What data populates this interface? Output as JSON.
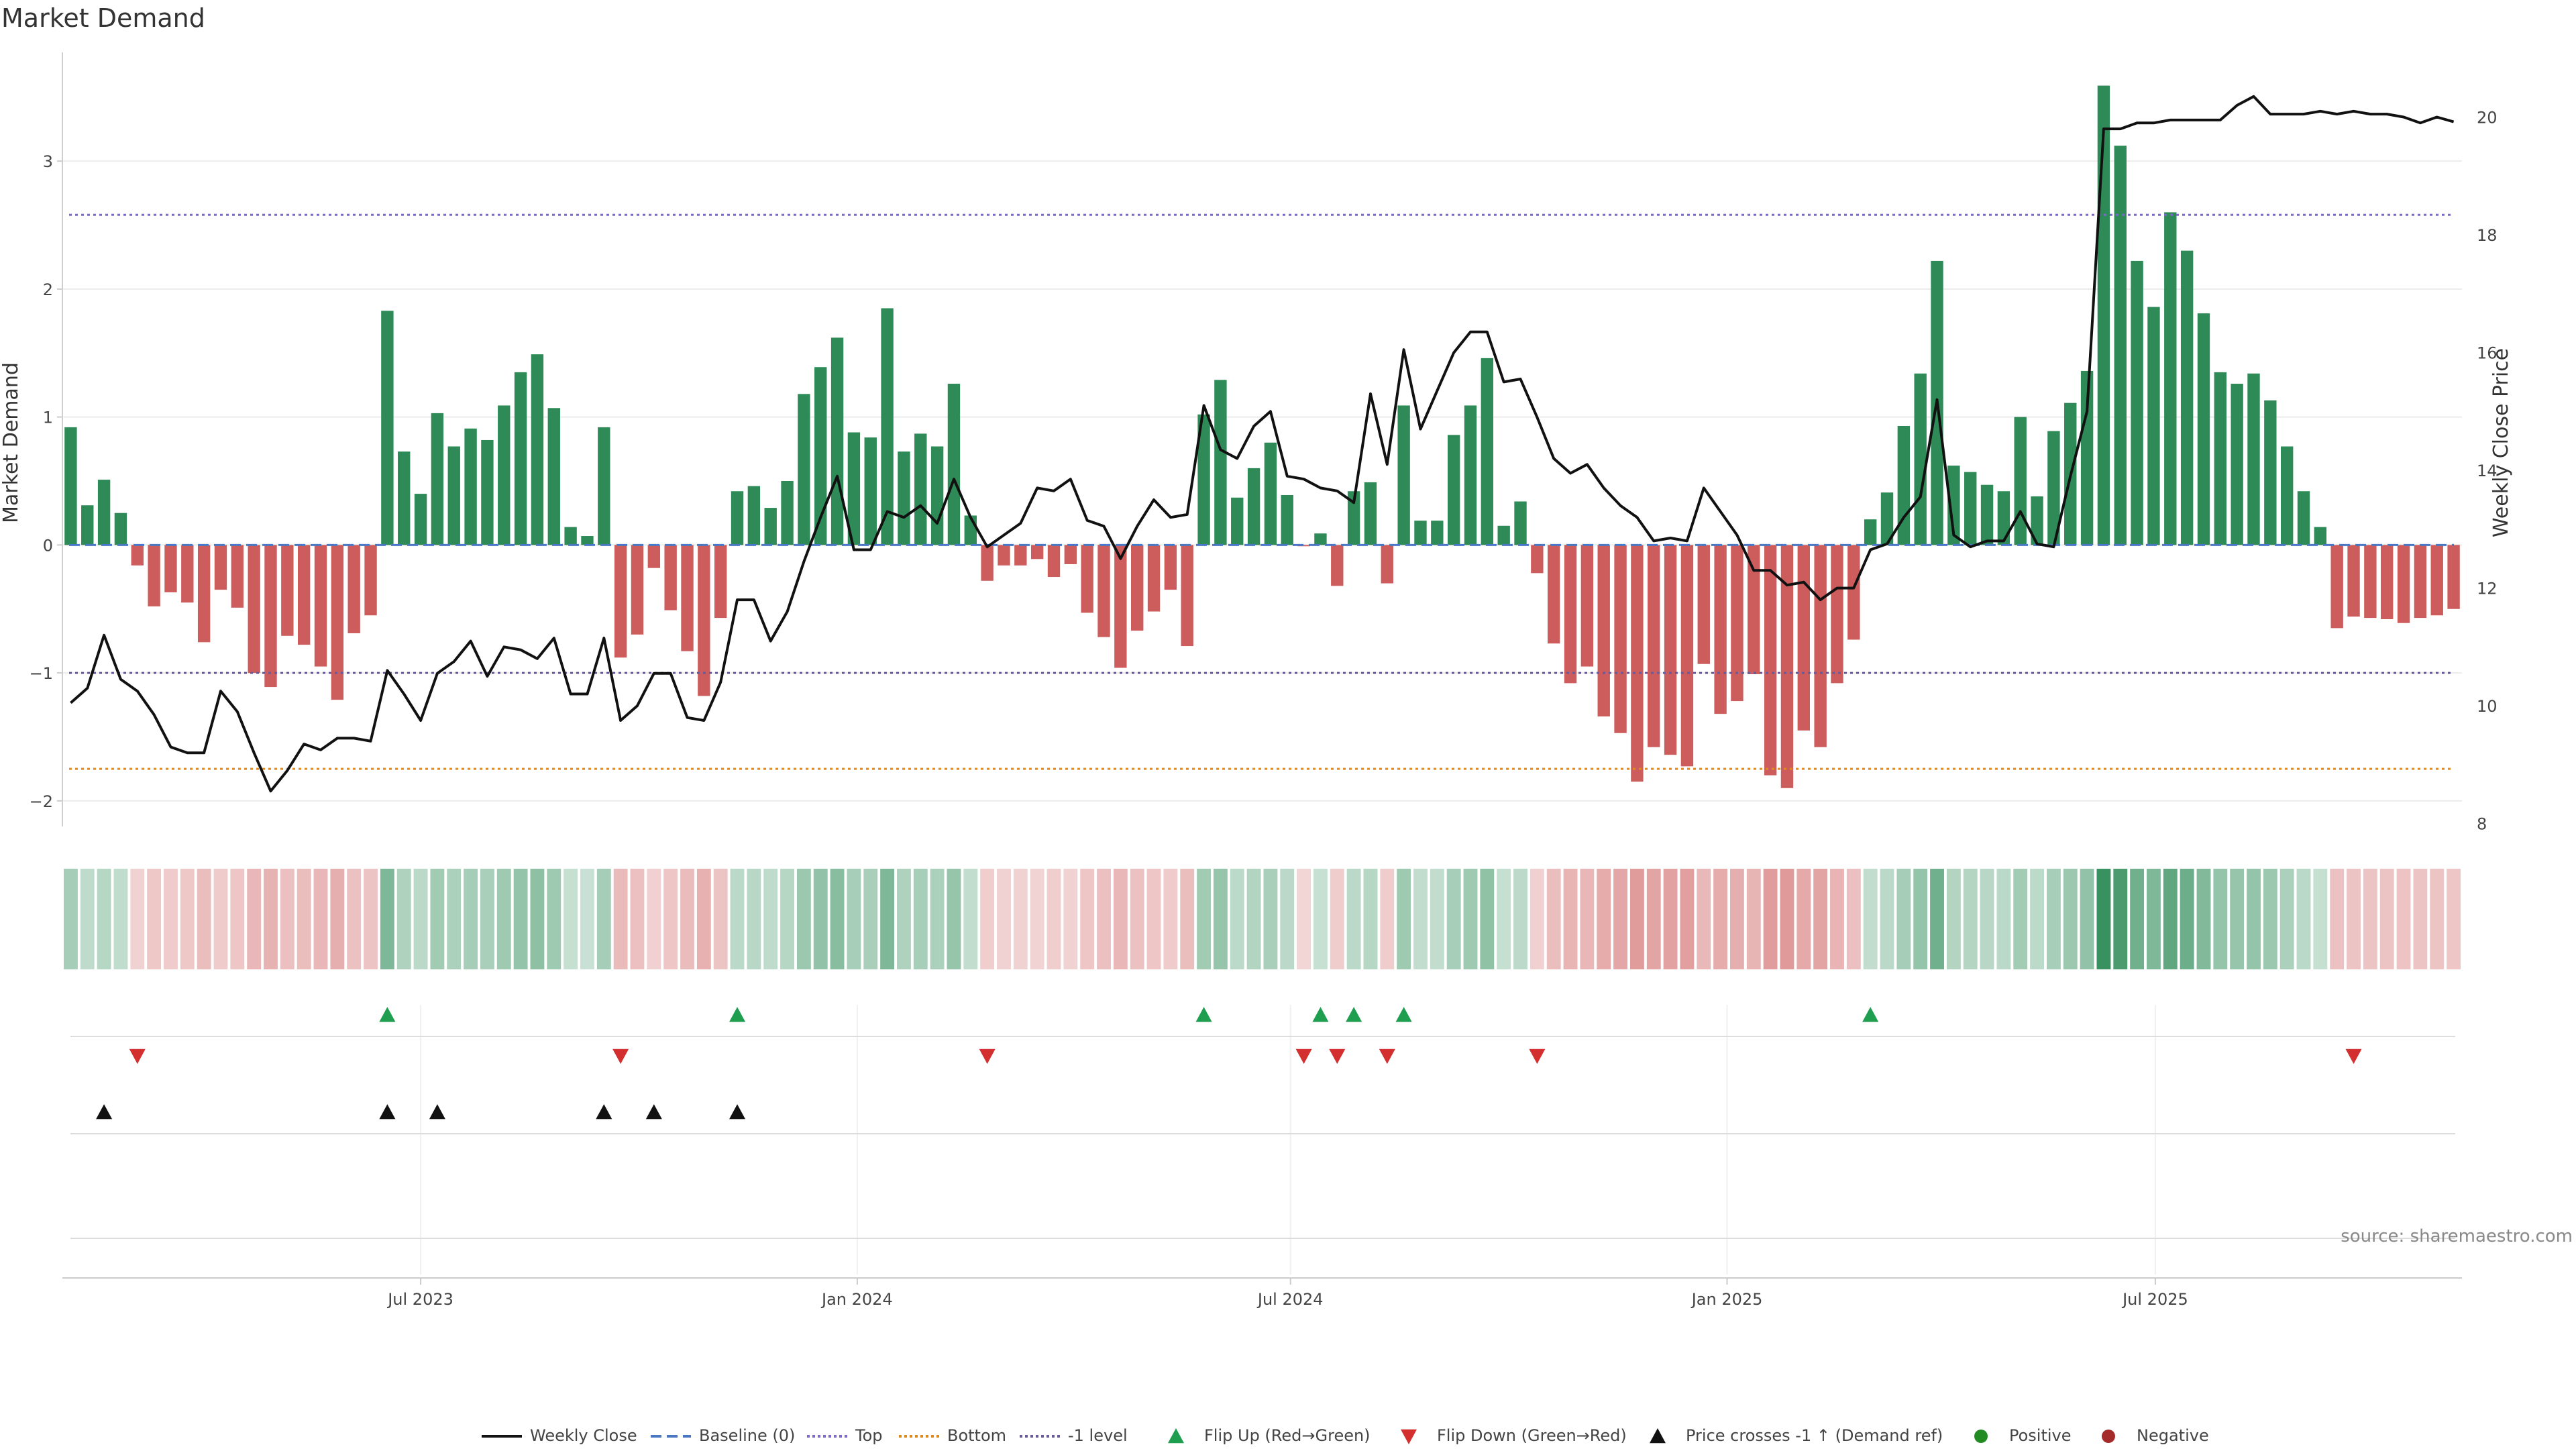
{
  "chart_data": {
    "type": "bar",
    "title": "Market Demand",
    "ylabel": "Market Demand",
    "y2label": "Weekly Close Price",
    "source": "source: sharemaestro.com",
    "ylim": [
      -2.2,
      3.85
    ],
    "y2lim": [
      7.95,
      21.1
    ],
    "yticks": [
      "−2",
      "−1",
      "0",
      "1",
      "2",
      "3"
    ],
    "yticks_values": [
      -2,
      -1,
      0,
      1,
      2,
      3
    ],
    "y2ticks": [
      "8",
      "10",
      "12",
      "14",
      "16",
      "18",
      "20"
    ],
    "y2ticks_values": [
      8,
      10,
      12,
      14,
      16,
      18,
      20
    ],
    "xticks": [
      "Jul 2023",
      "Jan 2024",
      "Jul 2024",
      "Jan 2025",
      "Jul 2025"
    ],
    "xticks_index": [
      21.5,
      47.7,
      73.7,
      99.9,
      125.6
    ],
    "reference_lines": {
      "top": 2.58,
      "bottom": -1.75,
      "minus_one": -1
    },
    "colors": {
      "positive": "#2e8b57",
      "negative": "#cd5c5c",
      "price": "#111111",
      "baseline": "#4a78c2",
      "top": "#7b68c8",
      "bottom": "#e08a1e",
      "minus_one": "#6a5a9a",
      "flip_up": "#1f9e4f",
      "flip_down": "#d32f2f",
      "cross": "#111111",
      "legend_positive": "#228b22",
      "legend_negative": "#a52a2a"
    },
    "demand": [
      0.92,
      0.31,
      0.51,
      0.25,
      -0.16,
      -0.48,
      -0.37,
      -0.45,
      -0.76,
      -0.35,
      -0.49,
      -1.0,
      -1.11,
      -0.71,
      -0.78,
      -0.95,
      -1.21,
      -0.69,
      -0.55,
      1.83,
      0.73,
      0.4,
      1.03,
      0.77,
      0.91,
      0.82,
      1.09,
      1.35,
      1.49,
      1.07,
      0.14,
      0.07,
      0.92,
      -0.88,
      -0.7,
      -0.18,
      -0.51,
      -0.83,
      -1.18,
      -0.57,
      0.42,
      0.46,
      0.29,
      0.5,
      1.18,
      1.39,
      1.62,
      0.88,
      0.84,
      1.85,
      0.73,
      0.87,
      0.77,
      1.26,
      0.23,
      -0.28,
      -0.16,
      -0.16,
      -0.11,
      -0.25,
      -0.15,
      -0.53,
      -0.72,
      -0.96,
      -0.67,
      -0.52,
      -0.35,
      -0.79,
      1.02,
      1.29,
      0.37,
      0.6,
      0.8,
      0.39,
      -0.01,
      0.09,
      -0.32,
      0.42,
      0.49,
      -0.3,
      1.09,
      0.19,
      0.19,
      0.86,
      1.09,
      1.46,
      0.15,
      0.34,
      -0.22,
      -0.77,
      -1.08,
      -0.95,
      -1.34,
      -1.47,
      -1.85,
      -1.58,
      -1.64,
      -1.73,
      -0.93,
      -1.32,
      -1.22,
      -1.01,
      -1.8,
      -1.9,
      -1.45,
      -1.58,
      -1.08,
      -0.74,
      0.2,
      0.41,
      0.93,
      1.34,
      2.22,
      0.62,
      0.57,
      0.47,
      0.42,
      1.0,
      0.38,
      0.89,
      1.11,
      1.36,
      3.59,
      3.12,
      2.22,
      1.86,
      2.6,
      2.3,
      1.81,
      1.35,
      1.26,
      1.34,
      1.13,
      0.77,
      0.42,
      0.14,
      -0.65,
      -0.56,
      -0.57,
      -0.58,
      -0.61,
      -0.57,
      -0.55,
      -0.5
    ],
    "close": [
      10.05,
      10.3,
      11.2,
      10.45,
      10.25,
      9.85,
      9.3,
      9.2,
      9.2,
      10.25,
      9.9,
      9.2,
      8.55,
      8.9,
      9.35,
      9.25,
      9.45,
      9.45,
      9.4,
      10.6,
      10.2,
      9.75,
      10.55,
      10.75,
      11.1,
      10.5,
      11.0,
      10.95,
      10.8,
      11.15,
      10.2,
      10.2,
      11.15,
      9.75,
      10.0,
      10.55,
      10.55,
      9.8,
      9.75,
      10.4,
      11.8,
      11.8,
      11.1,
      11.6,
      12.45,
      13.2,
      13.9,
      12.65,
      12.65,
      13.3,
      13.2,
      13.4,
      13.1,
      13.85,
      13.2,
      12.7,
      12.9,
      13.1,
      13.7,
      13.65,
      13.85,
      13.15,
      13.05,
      12.5,
      13.05,
      13.5,
      13.2,
      13.25,
      15.1,
      14.35,
      14.2,
      14.75,
      15.0,
      13.9,
      13.85,
      13.7,
      13.65,
      13.45,
      15.3,
      14.1,
      16.05,
      14.7,
      15.35,
      16.0,
      16.35,
      16.35,
      15.5,
      15.55,
      14.9,
      14.2,
      13.95,
      14.1,
      13.7,
      13.4,
      13.2,
      12.8,
      12.85,
      12.8,
      13.7,
      13.3,
      12.9,
      12.3,
      12.3,
      12.05,
      12.1,
      11.8,
      12.0,
      12.0,
      12.65,
      12.75,
      13.2,
      13.55,
      15.2,
      12.9,
      12.7,
      12.8,
      12.8,
      13.3,
      12.75,
      12.7,
      13.9,
      15.0,
      19.8,
      19.8,
      19.9,
      19.9,
      19.95,
      19.95,
      19.95,
      19.95,
      20.2,
      20.35,
      20.05,
      20.05,
      20.05,
      20.1,
      20.05,
      20.1,
      20.05,
      20.05,
      20.0,
      19.9,
      20.0,
      19.92
    ],
    "flip_up_index": [
      19,
      40,
      68,
      75,
      77,
      80,
      108
    ],
    "flip_down_index": [
      4,
      33,
      55,
      74,
      76,
      79,
      88,
      137
    ],
    "cross_index": [
      2,
      19,
      22,
      32,
      35,
      40
    ],
    "legend": [
      {
        "label": "Weekly Close",
        "kind": "line",
        "color": "#111111",
        "dash": ""
      },
      {
        "label": "Baseline (0)",
        "kind": "line",
        "color": "#4a78c2",
        "dash": "16 8"
      },
      {
        "label": "Top",
        "kind": "line",
        "color": "#7b68c8",
        "dash": "4 4"
      },
      {
        "label": "Bottom",
        "kind": "line",
        "color": "#e08a1e",
        "dash": "4 4"
      },
      {
        "label": "-1 level",
        "kind": "line",
        "color": "#6a5a9a",
        "dash": "4 4"
      },
      {
        "label": "Flip Up (Red→Green)",
        "kind": "tri-up",
        "color": "#1f9e4f"
      },
      {
        "label": "Flip Down (Green→Red)",
        "kind": "tri-down",
        "color": "#d32f2f"
      },
      {
        "label": "Price crosses -1 ↑ (Demand ref)",
        "kind": "tri-up",
        "color": "#111111"
      },
      {
        "label": "Positive",
        "kind": "dot",
        "color": "#228b22"
      },
      {
        "label": "Negative",
        "kind": "dot",
        "color": "#a52a2a"
      }
    ]
  }
}
